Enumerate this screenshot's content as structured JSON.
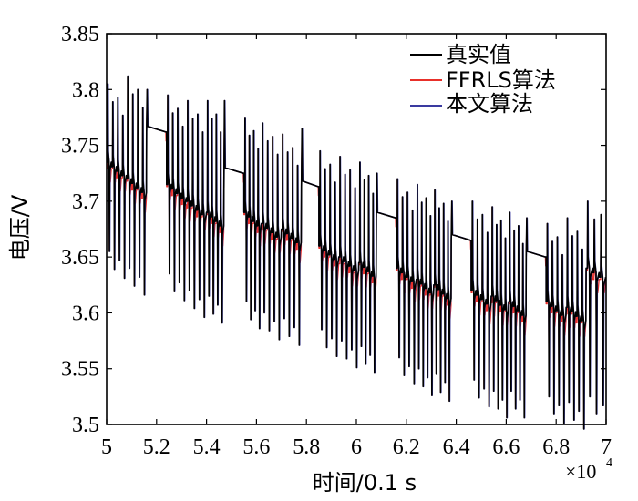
{
  "chart_data": {
    "type": "line",
    "title": "",
    "xlabel": "时间/0.1 s",
    "ylabel": "电压/V",
    "x_multiplier_label": "×10",
    "x_multiplier_exp": "4",
    "xlim": [
      5,
      7
    ],
    "ylim": [
      3.5,
      3.85
    ],
    "x_ticks": [
      5,
      5.2,
      5.4,
      5.6,
      5.8,
      6,
      6.2,
      6.4,
      6.6,
      6.8,
      7
    ],
    "x_tick_labels": [
      "5",
      "5.2",
      "5.4",
      "5.6",
      "5.8",
      "6",
      "6.2",
      "6.4",
      "6.6",
      "6.8",
      "7"
    ],
    "y_ticks": [
      3.5,
      3.55,
      3.6,
      3.65,
      3.7,
      3.75,
      3.8,
      3.85
    ],
    "y_tick_labels": [
      "3.5",
      "3.55",
      "3.6",
      "3.65",
      "3.7",
      "3.75",
      "3.8",
      "3.85"
    ],
    "grid": false,
    "legend_position": "top-right",
    "series": [
      {
        "name": "真实值",
        "color": "#000000"
      },
      {
        "name": "FFRLS算法",
        "color": "#e8302a"
      },
      {
        "name": "本文算法",
        "color": "#3a3aa0"
      }
    ],
    "segments": [
      {
        "x0": 5.0,
        "x1": 5.08,
        "base": 3.735,
        "peak": 3.805,
        "trough": 3.655,
        "pulses": 4
      },
      {
        "x0": 5.08,
        "x1": 5.16,
        "base": 3.72,
        "peak": 3.812,
        "trough": 3.64,
        "pulses": 4
      },
      {
        "x0": 5.16,
        "x1": 5.24,
        "base": 3.762,
        "peak": 3.8,
        "trough": 3.7,
        "pulses": 1
      },
      {
        "x0": 5.24,
        "x1": 5.32,
        "base": 3.715,
        "peak": 3.795,
        "trough": 3.635,
        "pulses": 4
      },
      {
        "x0": 5.32,
        "x1": 5.4,
        "base": 3.7,
        "peak": 3.79,
        "trough": 3.62,
        "pulses": 4
      },
      {
        "x0": 5.4,
        "x1": 5.47,
        "base": 3.69,
        "peak": 3.79,
        "trough": 3.615,
        "pulses": 4
      },
      {
        "x0": 5.47,
        "x1": 5.55,
        "base": 3.725,
        "peak": 3.79,
        "trough": 3.69,
        "pulses": 1
      },
      {
        "x0": 5.55,
        "x1": 5.62,
        "base": 3.69,
        "peak": 3.775,
        "trough": 3.61,
        "pulses": 4
      },
      {
        "x0": 5.62,
        "x1": 5.7,
        "base": 3.68,
        "peak": 3.77,
        "trough": 3.6,
        "pulses": 4
      },
      {
        "x0": 5.7,
        "x1": 5.78,
        "base": 3.675,
        "peak": 3.76,
        "trough": 3.595,
        "pulses": 4
      },
      {
        "x0": 5.78,
        "x1": 5.85,
        "base": 3.713,
        "peak": 3.765,
        "trough": 3.67,
        "pulses": 1
      },
      {
        "x0": 5.85,
        "x1": 5.93,
        "base": 3.66,
        "peak": 3.745,
        "trough": 3.585,
        "pulses": 4
      },
      {
        "x0": 5.93,
        "x1": 6.01,
        "base": 3.65,
        "peak": 3.74,
        "trough": 3.575,
        "pulses": 4
      },
      {
        "x0": 6.01,
        "x1": 6.08,
        "base": 3.645,
        "peak": 3.735,
        "trough": 3.57,
        "pulses": 4
      },
      {
        "x0": 6.08,
        "x1": 6.16,
        "base": 3.685,
        "peak": 3.725,
        "trough": 3.65,
        "pulses": 1
      },
      {
        "x0": 6.16,
        "x1": 6.24,
        "base": 3.64,
        "peak": 3.72,
        "trough": 3.56,
        "pulses": 4
      },
      {
        "x0": 6.24,
        "x1": 6.31,
        "base": 3.63,
        "peak": 3.715,
        "trough": 3.55,
        "pulses": 4
      },
      {
        "x0": 6.31,
        "x1": 6.38,
        "base": 3.625,
        "peak": 3.71,
        "trough": 3.545,
        "pulses": 4
      },
      {
        "x0": 6.38,
        "x1": 6.46,
        "base": 3.665,
        "peak": 3.7,
        "trough": 3.63,
        "pulses": 1
      },
      {
        "x0": 6.46,
        "x1": 6.54,
        "base": 3.62,
        "peak": 3.7,
        "trough": 3.54,
        "pulses": 4
      },
      {
        "x0": 6.54,
        "x1": 6.61,
        "base": 3.615,
        "peak": 3.695,
        "trough": 3.53,
        "pulses": 4
      },
      {
        "x0": 6.61,
        "x1": 6.68,
        "base": 3.61,
        "peak": 3.69,
        "trough": 3.53,
        "pulses": 4
      },
      {
        "x0": 6.68,
        "x1": 6.76,
        "base": 3.65,
        "peak": 3.685,
        "trough": 3.62,
        "pulses": 1
      },
      {
        "x0": 6.76,
        "x1": 6.84,
        "base": 3.61,
        "peak": 3.68,
        "trough": 3.525,
        "pulses": 4
      },
      {
        "x0": 6.84,
        "x1": 6.92,
        "base": 3.605,
        "peak": 3.685,
        "trough": 3.52,
        "pulses": 4
      },
      {
        "x0": 6.92,
        "x1": 7.0,
        "base": 3.64,
        "peak": 3.7,
        "trough": 3.525,
        "pulses": 3
      }
    ]
  }
}
